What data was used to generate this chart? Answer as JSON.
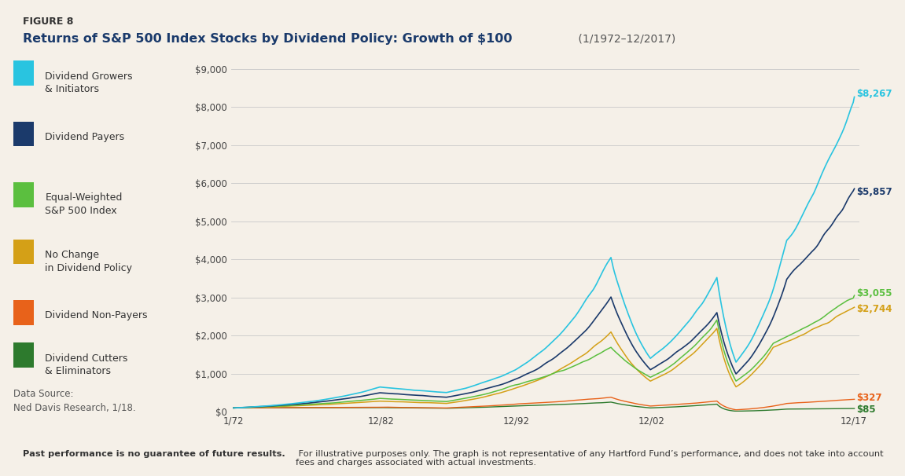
{
  "title_fig": "FIGURE 8",
  "title_main": "Returns of S&P 500 Index Stocks by Dividend Policy: Growth of $100",
  "title_date": " (1/1972–12/2017)",
  "background_color": "#F5F0E8",
  "ylim": [
    0,
    9000
  ],
  "yticks": [
    0,
    1000,
    2000,
    3000,
    4000,
    5000,
    6000,
    7000,
    8000,
    9000
  ],
  "ytick_labels": [
    "$0",
    "$1,000",
    "$2,000",
    "$3,000",
    "$4,000",
    "$5,000",
    "$6,000",
    "$7,000",
    "$8,000",
    "$9,000"
  ],
  "xtick_positions": [
    1972.0,
    1982.917,
    1992.917,
    2002.917,
    2017.917
  ],
  "xtick_labels": [
    "1/72",
    "12/82",
    "12/92",
    "12/02",
    "12/17"
  ],
  "colors": {
    "growers": "#29C4E0",
    "payers": "#1B3A6B",
    "equal_weighted": "#5BBF3F",
    "no_change": "#D4A017",
    "non_payers": "#E8621A",
    "cutters": "#2D7A2D"
  },
  "legend_items": [
    {
      "label": "Dividend Growers\n& Initiators",
      "color": "#29C4E0"
    },
    {
      "label": "Dividend Payers",
      "color": "#1B3A6B"
    },
    {
      "label": "Equal-Weighted\nS&P 500 Index",
      "color": "#5BBF3F"
    },
    {
      "label": "No Change\nin Dividend Policy",
      "color": "#D4A017"
    },
    {
      "label": "Dividend Non-Payers",
      "color": "#E8621A"
    },
    {
      "label": "Dividend Cutters\n& Eliminators",
      "color": "#2D7A2D"
    }
  ],
  "end_value_labels": [
    "$8,267",
    "$5,857",
    "$3,055",
    "$2,744",
    "$327",
    "$85"
  ],
  "ev_vals": [
    8267,
    5857,
    3055,
    2744,
    327,
    85
  ],
  "data_source": "Data Source:\nNed Davis Research, 1/18.",
  "footnote_bold": "Past performance is no guarantee of future results.",
  "footnote_regular": " For illustrative purposes only. The graph is not representative of any Hartford Fund’s performance, and does not take into account fees and charges associated with actual investments.",
  "n_points": 552,
  "x_start": 1972.0,
  "x_end": 2017.95
}
